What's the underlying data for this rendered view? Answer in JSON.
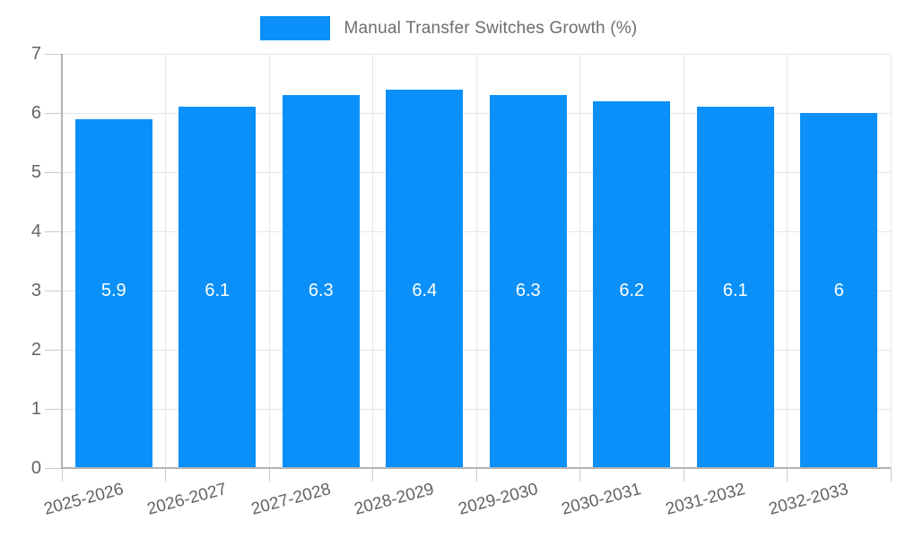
{
  "legend": {
    "swatch_color": "#0a90f8",
    "label": "Manual Transfer Switches Growth (%)"
  },
  "chart_data": {
    "type": "bar",
    "title": "Manual Transfer Switches Growth (%)",
    "categories": [
      "2025-2026",
      "2026-2027",
      "2027-2028",
      "2028-2029",
      "2029-2030",
      "2030-2031",
      "2031-2032",
      "2032-2033"
    ],
    "values": [
      5.9,
      6.1,
      6.3,
      6.4,
      6.3,
      6.2,
      6.1,
      6
    ],
    "value_labels": [
      "5.9",
      "6.1",
      "6.3",
      "6.4",
      "6.3",
      "6.2",
      "6.1",
      "6"
    ],
    "xlabel": "",
    "ylabel": "",
    "ylim": [
      0,
      7
    ],
    "yticks": [
      0,
      1,
      2,
      3,
      4,
      5,
      6,
      7
    ],
    "grid": true,
    "legend_position": "top",
    "bar_color": "#0a90f8",
    "value_label_color": "#ffffff",
    "axis_text_color": "#636363",
    "gridline_color": "#e6e6e6"
  }
}
